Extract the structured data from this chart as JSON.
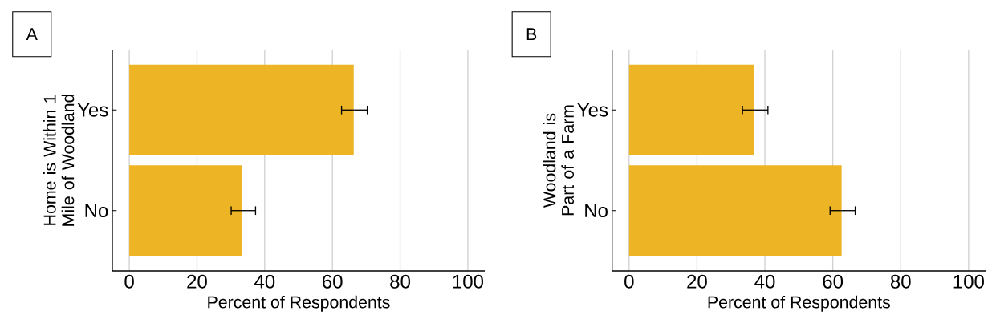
{
  "chart_data": [
    {
      "type": "bar",
      "orientation": "horizontal",
      "title": "A",
      "categories": [
        "Yes",
        "No"
      ],
      "values": [
        66.3,
        33.3
      ],
      "errors": [
        [
          62.7,
          70.3
        ],
        [
          30.1,
          37.3
        ]
      ],
      "color": "#edb425",
      "xlabel": "Percent of Respondents",
      "ylabel": "Home is Within 1 Mile of Woodland",
      "xlim": [
        -5,
        105
      ],
      "xticks": [
        0,
        20,
        40,
        60,
        80,
        100
      ],
      "grid": "x"
    },
    {
      "type": "bar",
      "orientation": "horizontal",
      "title": "B",
      "categories": [
        "Yes",
        "No"
      ],
      "values": [
        36.9,
        62.6
      ],
      "errors": [
        [
          33.4,
          40.9
        ],
        [
          59.2,
          66.6
        ]
      ],
      "color": "#edb425",
      "xlabel": "Percent of Respondents",
      "ylabel": "Woodland is Part of a Farm",
      "xlim": [
        -5,
        105
      ],
      "xticks": [
        0,
        20,
        40,
        60,
        80,
        100
      ],
      "grid": "x"
    }
  ]
}
